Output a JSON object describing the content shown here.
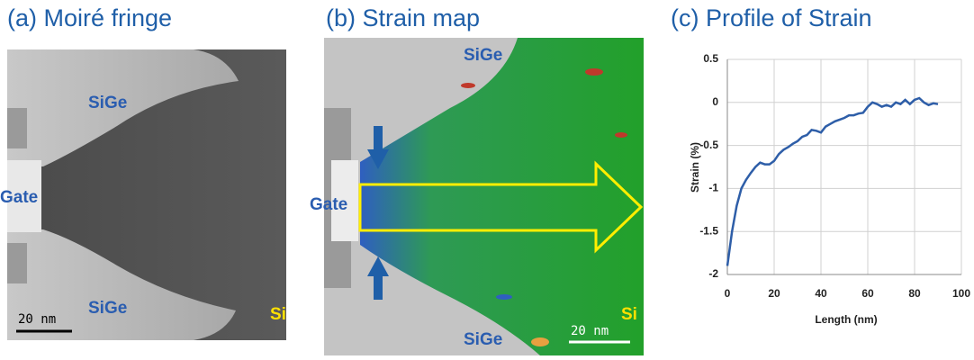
{
  "panels": [
    {
      "title": "(a) Moiré fringe",
      "labels": [
        "SiGe",
        "Gate",
        "SiGe",
        "Si"
      ],
      "scale_bar": "20 nm"
    },
    {
      "title": "(b) Strain map",
      "labels": [
        "SiGe",
        "Gate",
        "SiGe",
        "Si"
      ],
      "scale_bar": "20 nm"
    }
  ],
  "chart_data": {
    "type": "line",
    "title": "(c) Profile of Strain",
    "x_label": "Length (nm)",
    "y_label": "Strain (%)",
    "x": [
      0,
      2,
      4,
      6,
      8,
      10,
      12,
      14,
      16,
      18,
      20,
      22,
      24,
      26,
      28,
      30,
      32,
      34,
      36,
      38,
      40,
      42,
      44,
      46,
      48,
      50,
      52,
      54,
      56,
      58,
      60,
      62,
      64,
      66,
      68,
      70,
      72,
      74,
      76,
      78,
      80,
      82,
      84,
      86,
      88,
      90
    ],
    "values": [
      -1.9,
      -1.5,
      -1.2,
      -1.0,
      -0.9,
      -0.82,
      -0.75,
      -0.7,
      -0.72,
      -0.72,
      -0.68,
      -0.6,
      -0.55,
      -0.52,
      -0.48,
      -0.45,
      -0.4,
      -0.38,
      -0.32,
      -0.33,
      -0.35,
      -0.28,
      -0.25,
      -0.22,
      -0.2,
      -0.18,
      -0.15,
      -0.15,
      -0.13,
      -0.12,
      -0.05,
      0.0,
      -0.02,
      -0.05,
      -0.03,
      -0.05,
      0.0,
      -0.02,
      0.03,
      -0.02,
      0.03,
      0.05,
      0.0,
      -0.03,
      -0.01,
      -0.02
    ],
    "color": "#2e5ea8",
    "xlim": [
      0,
      100
    ],
    "xticks": [
      0,
      20,
      40,
      60,
      80,
      100
    ],
    "ylim": [
      -2,
      0.5
    ],
    "yticks": [
      0.5,
      0,
      -0.5,
      -1,
      -1.5,
      -2
    ],
    "grid": true
  }
}
